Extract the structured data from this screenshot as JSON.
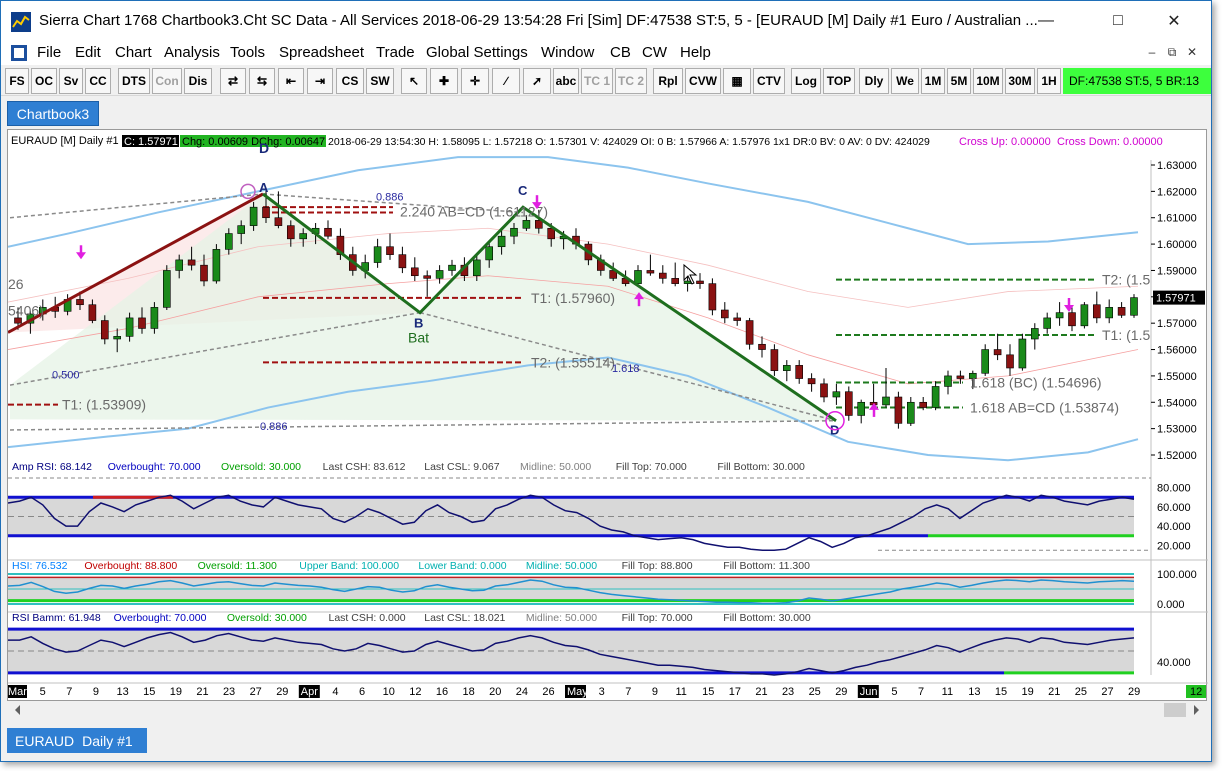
{
  "window": {
    "title": "Sierra Chart 1768 Chartbook3.Cht  SC Data - All Services 2018-06-29  13:54:28 Fri [Sim]  DF:47538  ST:5, 5 - [EURAUD [M]  Daily  #1  Euro / Australian ..."
  },
  "menu": [
    "File",
    "Edit",
    "Chart",
    "Analysis",
    "Tools",
    "Spreadsheet",
    "Trade",
    "Global Settings",
    "Window",
    "CB",
    "CW",
    "Help"
  ],
  "toolbar": {
    "buttons": [
      "FS",
      "OC",
      "Sv",
      "CC",
      "DTS",
      "Con",
      "Dis",
      "CS",
      "SW",
      "abc",
      "TC 1",
      "TC 2",
      "Rpl",
      "CVW",
      "CTV",
      "Log",
      "TOP",
      "Dly",
      "We",
      "1M",
      "5M",
      "10M",
      "30M",
      "1H"
    ],
    "status": "DF:47538   ST:5, 5   BR:13"
  },
  "chartbook_tab": "Chartbook3",
  "sheet_tab": {
    "symbol": "EURAUD",
    "label": "Daily  #1"
  },
  "header": {
    "symbol": "EURAUD [M]  Daily  #1",
    "price_box": "C: 1.57971",
    "chg_box": "Chg: 0.00609 DChg: 0.00647",
    "detail": "2018-06-29 13:54:30 H: 1.58095 L: 1.57218 O: 1.57301 V: 424029 OI: 0 B: 1.57966 A: 1.57976 1x1 DR:0 BV: 0 AV: 0 DV: 424029",
    "cross_up": "Cross Up: 0.00000",
    "cross_down": "Cross Down: 0.00000"
  },
  "price_axis": [
    "1.63000",
    "1.62000",
    "1.61000",
    "1.60000",
    "1.59000",
    "1.58000",
    "1.57000",
    "1.56000",
    "1.55000",
    "1.54000",
    "1.53000",
    "1.52000"
  ],
  "current_price": "1.57971",
  "pattern": {
    "labels": {
      "A": "A",
      "B": "B",
      "C": "C",
      "D": "D",
      "D_top": "D",
      "name": "Bat"
    },
    "annotations": {
      "r886_top": "0.886",
      "ab_cd_top": "2.240 AB=CD (1.61127)",
      "t1_mid": "T1: (1.57960)",
      "t2_mid": "T2: (1.55514)",
      "r1618": "1.618",
      "r500": "0.500",
      "r886_bot": "0.886",
      "t1_left": "T1: (1.53909)",
      "left_a": "26",
      "left_b": "5406)",
      "t2_right": "T2: (1.5",
      "t1_right": "T1: (1.5",
      "bc_1618": "1.618 (BC) (1.54696)",
      "ab_cd_right": "1.618 AB=CD (1.53874)"
    }
  },
  "amp_rsi": {
    "header": [
      {
        "t": "Amp RSI: 68.142",
        "c": "#000080"
      },
      {
        "t": "Overbought: 70.000",
        "c": "#0000c0"
      },
      {
        "t": "Oversold: 30.000",
        "c": "#00a000"
      },
      {
        "t": "Last CSH: 83.612",
        "c": "#404040"
      },
      {
        "t": "Last CSL: 9.067",
        "c": "#404040"
      },
      {
        "t": "Midline: 50.000",
        "c": "#808080"
      },
      {
        "t": "Fill Top: 70.000",
        "c": "#404040"
      },
      {
        "t": "Fill Bottom: 30.000",
        "c": "#404040"
      }
    ],
    "axis": [
      "80.000",
      "60.000",
      "40.000",
      "20.000"
    ]
  },
  "hsi": {
    "header": [
      {
        "t": "HSI: 76.532",
        "c": "#0080ff"
      },
      {
        "t": "Overbought: 88.800",
        "c": "#c00000"
      },
      {
        "t": "Oversold: 11.300",
        "c": "#00a000"
      },
      {
        "t": "Upper Band: 100.000",
        "c": "#00b0b0"
      },
      {
        "t": "Lower Band: 0.000",
        "c": "#00b0b0"
      },
      {
        "t": "Midline: 50.000",
        "c": "#00b0b0"
      },
      {
        "t": "Fill Top: 88.800",
        "c": "#404040"
      },
      {
        "t": "Fill Bottom: 11.300",
        "c": "#404040"
      }
    ],
    "axis": [
      "100.000",
      "0.000"
    ]
  },
  "rsi_bamm": {
    "header": [
      {
        "t": "RSI Bamm: 61.948",
        "c": "#000080"
      },
      {
        "t": "Overbought: 70.000",
        "c": "#0000c0"
      },
      {
        "t": "Oversold: 30.000",
        "c": "#00a000"
      },
      {
        "t": "Last CSH: 0.000",
        "c": "#404040"
      },
      {
        "t": "Last CSL: 18.021",
        "c": "#404040"
      },
      {
        "t": "Midline: 50.000",
        "c": "#808080"
      },
      {
        "t": "Fill Top: 70.000",
        "c": "#404040"
      },
      {
        "t": "Fill Bottom: 30.000",
        "c": "#404040"
      }
    ],
    "axis": [
      "40.000"
    ]
  },
  "date_axis": [
    {
      "t": "Mar",
      "m": true
    },
    {
      "t": "5"
    },
    {
      "t": "7"
    },
    {
      "t": "9"
    },
    {
      "t": "13"
    },
    {
      "t": "15"
    },
    {
      "t": "19"
    },
    {
      "t": "21"
    },
    {
      "t": "23"
    },
    {
      "t": "27"
    },
    {
      "t": "29"
    },
    {
      "t": "Apr",
      "m": true
    },
    {
      "t": "4"
    },
    {
      "t": "6"
    },
    {
      "t": "10"
    },
    {
      "t": "12"
    },
    {
      "t": "16"
    },
    {
      "t": "18"
    },
    {
      "t": "20"
    },
    {
      "t": "24"
    },
    {
      "t": "26"
    },
    {
      "t": "May",
      "m": true
    },
    {
      "t": "3"
    },
    {
      "t": "7"
    },
    {
      "t": "9"
    },
    {
      "t": "11"
    },
    {
      "t": "15"
    },
    {
      "t": "17"
    },
    {
      "t": "21"
    },
    {
      "t": "23"
    },
    {
      "t": "25"
    },
    {
      "t": "29"
    },
    {
      "t": "Jun",
      "m": true
    },
    {
      "t": "5"
    },
    {
      "t": "7"
    },
    {
      "t": "11"
    },
    {
      "t": "13"
    },
    {
      "t": "15"
    },
    {
      "t": "19"
    },
    {
      "t": "21"
    },
    {
      "t": "25"
    },
    {
      "t": "27"
    },
    {
      "t": "29"
    }
  ],
  "date_axis_badge": "12",
  "chart_data": {
    "type": "candlestick",
    "symbol": "EURAUD",
    "ylim": [
      1.515,
      1.635
    ],
    "candles": [
      [
        1.572,
        1.576,
        1.5675,
        1.57
      ],
      [
        1.57,
        1.5745,
        1.566,
        1.5735
      ],
      [
        1.5735,
        1.579,
        1.571,
        1.576
      ],
      [
        1.576,
        1.58,
        1.572,
        1.5745
      ],
      [
        1.5745,
        1.581,
        1.573,
        1.579
      ],
      [
        1.579,
        1.582,
        1.575,
        1.577
      ],
      [
        1.577,
        1.579,
        1.57,
        1.571
      ],
      [
        1.571,
        1.573,
        1.562,
        1.564
      ],
      [
        1.564,
        1.568,
        1.559,
        1.565
      ],
      [
        1.565,
        1.574,
        1.563,
        1.572
      ],
      [
        1.572,
        1.576,
        1.566,
        1.568
      ],
      [
        1.568,
        1.578,
        1.566,
        1.576
      ],
      [
        1.576,
        1.592,
        1.575,
        1.59
      ],
      [
        1.59,
        1.596,
        1.587,
        1.594
      ],
      [
        1.594,
        1.599,
        1.59,
        1.592
      ],
      [
        1.592,
        1.596,
        1.584,
        1.586
      ],
      [
        1.586,
        1.6,
        1.585,
        1.598
      ],
      [
        1.598,
        1.606,
        1.596,
        1.604
      ],
      [
        1.604,
        1.609,
        1.6,
        1.607
      ],
      [
        1.607,
        1.616,
        1.605,
        1.614
      ],
      [
        1.614,
        1.621,
        1.608,
        1.61
      ],
      [
        1.61,
        1.62,
        1.606,
        1.607
      ],
      [
        1.607,
        1.609,
        1.599,
        1.602
      ],
      [
        1.602,
        1.606,
        1.599,
        1.604
      ],
      [
        1.604,
        1.608,
        1.6,
        1.606
      ],
      [
        1.606,
        1.609,
        1.602,
        1.603
      ],
      [
        1.603,
        1.606,
        1.594,
        1.596
      ],
      [
        1.596,
        1.599,
        1.588,
        1.59
      ],
      [
        1.59,
        1.596,
        1.587,
        1.593
      ],
      [
        1.593,
        1.602,
        1.591,
        1.599
      ],
      [
        1.599,
        1.604,
        1.594,
        1.596
      ],
      [
        1.596,
        1.599,
        1.589,
        1.591
      ],
      [
        1.591,
        1.595,
        1.586,
        1.588
      ],
      [
        1.588,
        1.59,
        1.58,
        1.587
      ],
      [
        1.587,
        1.592,
        1.585,
        1.59
      ],
      [
        1.59,
        1.594,
        1.588,
        1.592
      ],
      [
        1.592,
        1.595,
        1.586,
        1.588
      ],
      [
        1.588,
        1.596,
        1.586,
        1.594
      ],
      [
        1.594,
        1.601,
        1.591,
        1.599
      ],
      [
        1.599,
        1.606,
        1.596,
        1.603
      ],
      [
        1.603,
        1.608,
        1.6,
        1.606
      ],
      [
        1.606,
        1.611,
        1.605,
        1.609
      ],
      [
        1.609,
        1.613,
        1.604,
        1.606
      ],
      [
        1.606,
        1.608,
        1.599,
        1.602
      ],
      [
        1.602,
        1.605,
        1.598,
        1.603
      ],
      [
        1.603,
        1.606,
        1.598,
        1.6
      ],
      [
        1.6,
        1.601,
        1.592,
        1.594
      ],
      [
        1.594,
        1.596,
        1.588,
        1.59
      ],
      [
        1.59,
        1.593,
        1.586,
        1.587
      ],
      [
        1.587,
        1.59,
        1.584,
        1.585
      ],
      [
        1.585,
        1.592,
        1.584,
        1.59
      ],
      [
        1.59,
        1.596,
        1.588,
        1.589
      ],
      [
        1.589,
        1.592,
        1.585,
        1.587
      ],
      [
        1.587,
        1.593,
        1.584,
        1.585
      ],
      [
        1.585,
        1.588,
        1.582,
        1.586
      ],
      [
        1.586,
        1.589,
        1.583,
        1.585
      ],
      [
        1.585,
        1.587,
        1.573,
        1.575
      ],
      [
        1.575,
        1.578,
        1.57,
        1.572
      ],
      [
        1.572,
        1.574,
        1.569,
        1.571
      ],
      [
        1.571,
        1.572,
        1.56,
        1.562
      ],
      [
        1.562,
        1.565,
        1.557,
        1.56
      ],
      [
        1.56,
        1.562,
        1.55,
        1.552
      ],
      [
        1.552,
        1.556,
        1.548,
        1.554
      ],
      [
        1.554,
        1.556,
        1.547,
        1.549
      ],
      [
        1.549,
        1.551,
        1.544,
        1.547
      ],
      [
        1.547,
        1.549,
        1.54,
        1.542
      ],
      [
        1.542,
        1.547,
        1.539,
        1.544
      ],
      [
        1.544,
        1.546,
        1.533,
        1.535
      ],
      [
        1.535,
        1.541,
        1.532,
        1.54
      ],
      [
        1.54,
        1.547,
        1.537,
        1.539
      ],
      [
        1.539,
        1.553,
        1.538,
        1.542
      ],
      [
        1.542,
        1.544,
        1.53,
        1.532
      ],
      [
        1.532,
        1.542,
        1.531,
        1.54
      ],
      [
        1.54,
        1.542,
        1.537,
        1.538
      ],
      [
        1.538,
        1.548,
        1.537,
        1.546
      ],
      [
        1.546,
        1.552,
        1.543,
        1.55
      ],
      [
        1.55,
        1.552,
        1.547,
        1.549
      ],
      [
        1.549,
        1.552,
        1.545,
        1.551
      ],
      [
        1.551,
        1.562,
        1.55,
        1.56
      ],
      [
        1.56,
        1.566,
        1.556,
        1.558
      ],
      [
        1.558,
        1.562,
        1.55,
        1.553
      ],
      [
        1.553,
        1.566,
        1.552,
        1.564
      ],
      [
        1.564,
        1.57,
        1.56,
        1.568
      ],
      [
        1.568,
        1.574,
        1.566,
        1.572
      ],
      [
        1.572,
        1.578,
        1.569,
        1.574
      ],
      [
        1.574,
        1.576,
        1.567,
        1.569
      ],
      [
        1.569,
        1.578,
        1.568,
        1.577
      ],
      [
        1.577,
        1.582,
        1.57,
        1.572
      ],
      [
        1.572,
        1.579,
        1.57,
        1.576
      ],
      [
        1.576,
        1.578,
        1.572,
        1.573
      ],
      [
        1.573,
        1.581,
        1.572,
        1.5797
      ]
    ],
    "pattern_points": {
      "X": 1.574,
      "A": 1.619,
      "B": 1.574,
      "C": 1.614,
      "D": 1.533
    },
    "targets": {
      "T1": 1.5796,
      "T2": 1.55514,
      "AB_CD_2240": 1.61127,
      "BC_1618": 1.54696,
      "AB_CD_1618": 1.53874
    }
  }
}
